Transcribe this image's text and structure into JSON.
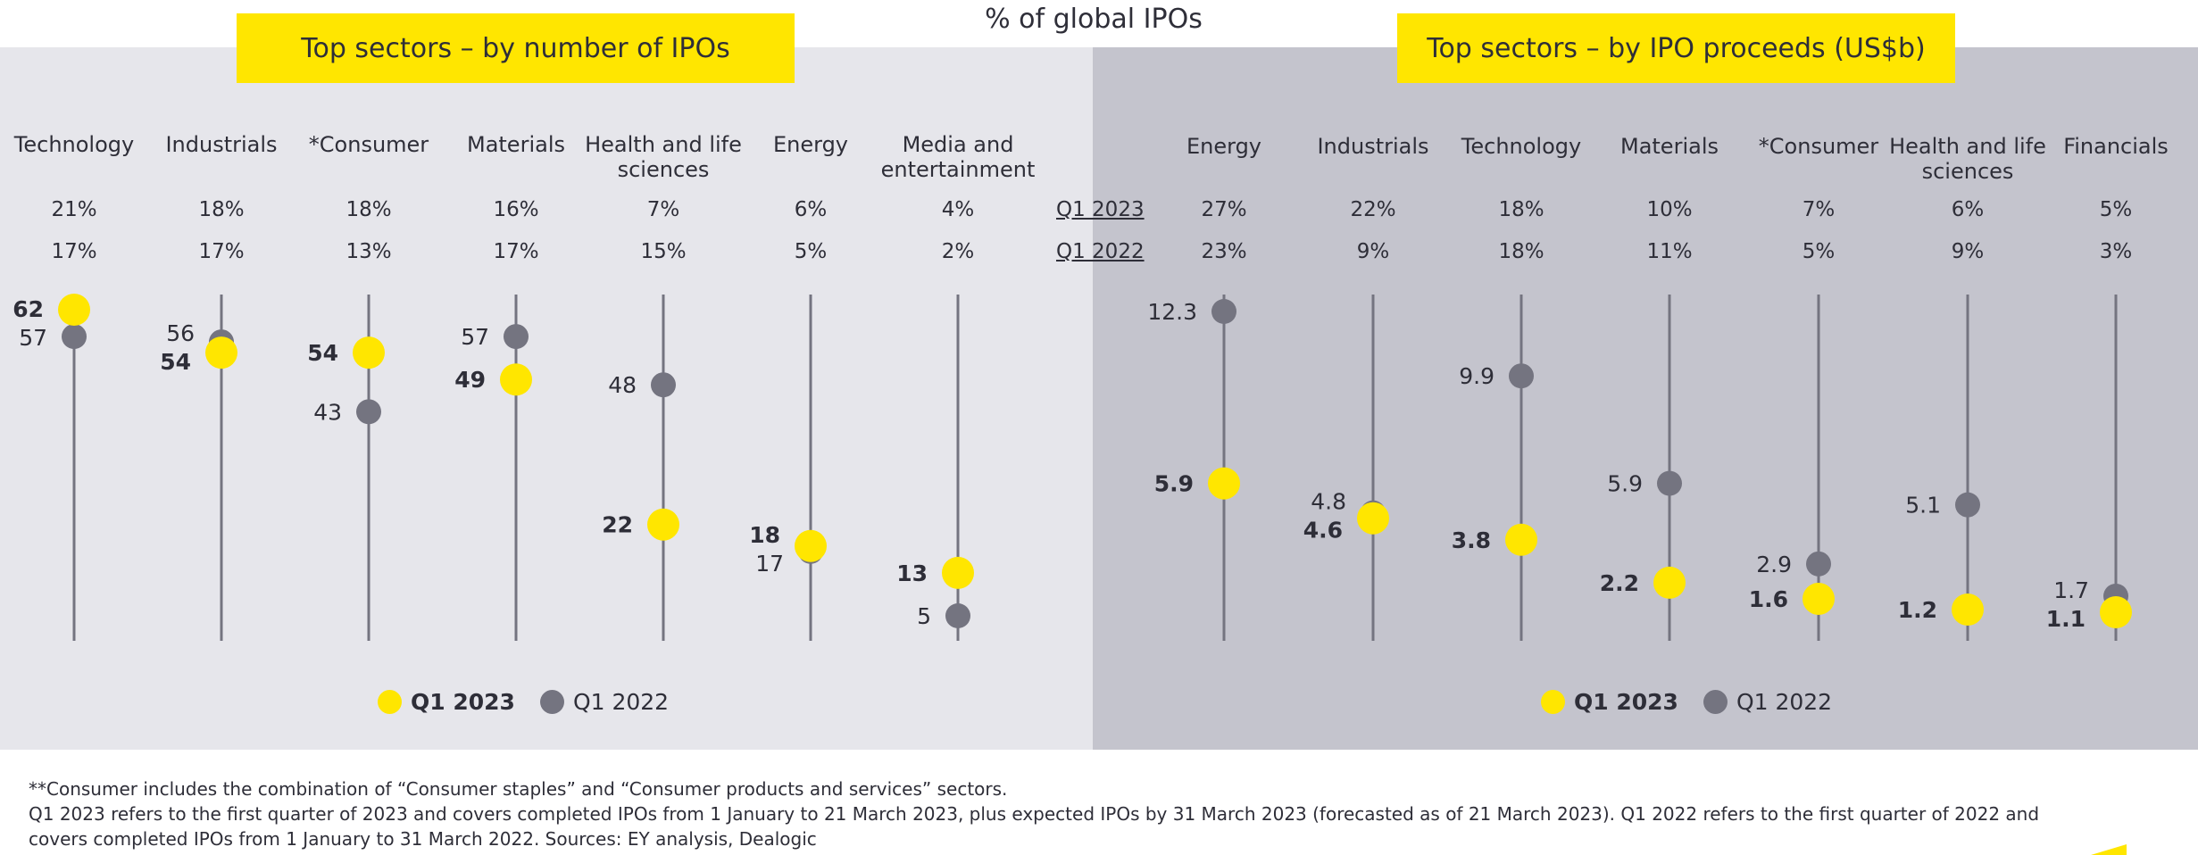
{
  "title": "% of global IPOs",
  "left_panel": {
    "heading": "Top sectors – by number of IPOs"
  },
  "right_panel": {
    "heading": "Top sectors – by IPO proceeds (US$b)"
  },
  "row_labels": [
    "Q1 2023",
    "Q1 2022"
  ],
  "colors": {
    "q1_2023": "#ffe600",
    "q1_2022": "#747480",
    "stem": "#747480",
    "left_bg": "#e6e6eb",
    "right_bg": "#c4c4cd",
    "heading_bg": "#ffe600"
  },
  "legend": [
    {
      "label": "Q1 2023",
      "color": "#ffe600"
    },
    {
      "label": "Q1 2022",
      "color": "#747480"
    }
  ],
  "chart_data": [
    {
      "type": "dot-plot",
      "title": "Top sectors – by number of IPOs",
      "categories": [
        "Technology",
        "Industrials",
        "*Consumer",
        "Materials",
        "Health and life sciences",
        "Energy",
        "Media and entertainment"
      ],
      "share_q1_2023": [
        "21%",
        "18%",
        "18%",
        "16%",
        "7%",
        "6%",
        "4%"
      ],
      "share_q1_2022": [
        "17%",
        "17%",
        "13%",
        "17%",
        "15%",
        "5%",
        "2%"
      ],
      "series": [
        {
          "name": "Q1 2023",
          "values": [
            62,
            54,
            54,
            49,
            22,
            18,
            13
          ]
        },
        {
          "name": "Q1 2022",
          "values": [
            57,
            56,
            43,
            57,
            48,
            17,
            5
          ]
        }
      ],
      "legend_position": "bottom"
    },
    {
      "type": "dot-plot",
      "title": "Top sectors – by IPO proceeds (US$b)",
      "categories": [
        "Energy",
        "Industrials",
        "Technology",
        "Materials",
        "*Consumer",
        "Health and life sciences",
        "Financials"
      ],
      "share_q1_2023": [
        "27%",
        "22%",
        "18%",
        "10%",
        "7%",
        "6%",
        "5%"
      ],
      "share_q1_2022": [
        "23%",
        "9%",
        "18%",
        "11%",
        "5%",
        "9%",
        "3%"
      ],
      "series": [
        {
          "name": "Q1 2023",
          "values": [
            5.9,
            4.6,
            3.8,
            2.2,
            1.6,
            1.2,
            1.1
          ]
        },
        {
          "name": "Q1 2022",
          "values": [
            12.3,
            4.8,
            9.9,
            5.9,
            2.9,
            5.1,
            1.7
          ]
        }
      ],
      "legend_position": "bottom"
    }
  ],
  "footnotes": [
    "**Consumer includes the combination of “Consumer staples” and “Consumer products and services” sectors.",
    "Q1 2023 refers to the first quarter of 2023 and covers completed IPOs from 1 January to 21 March 2023, plus expected IPOs by 31 March 2023 (forecasted as of 21 March 2023). Q1 2022 refers to the first quarter of 2022 and",
    "covers completed IPOs from 1 January to 31 March 2022. Sources: EY analysis, Dealogic"
  ]
}
